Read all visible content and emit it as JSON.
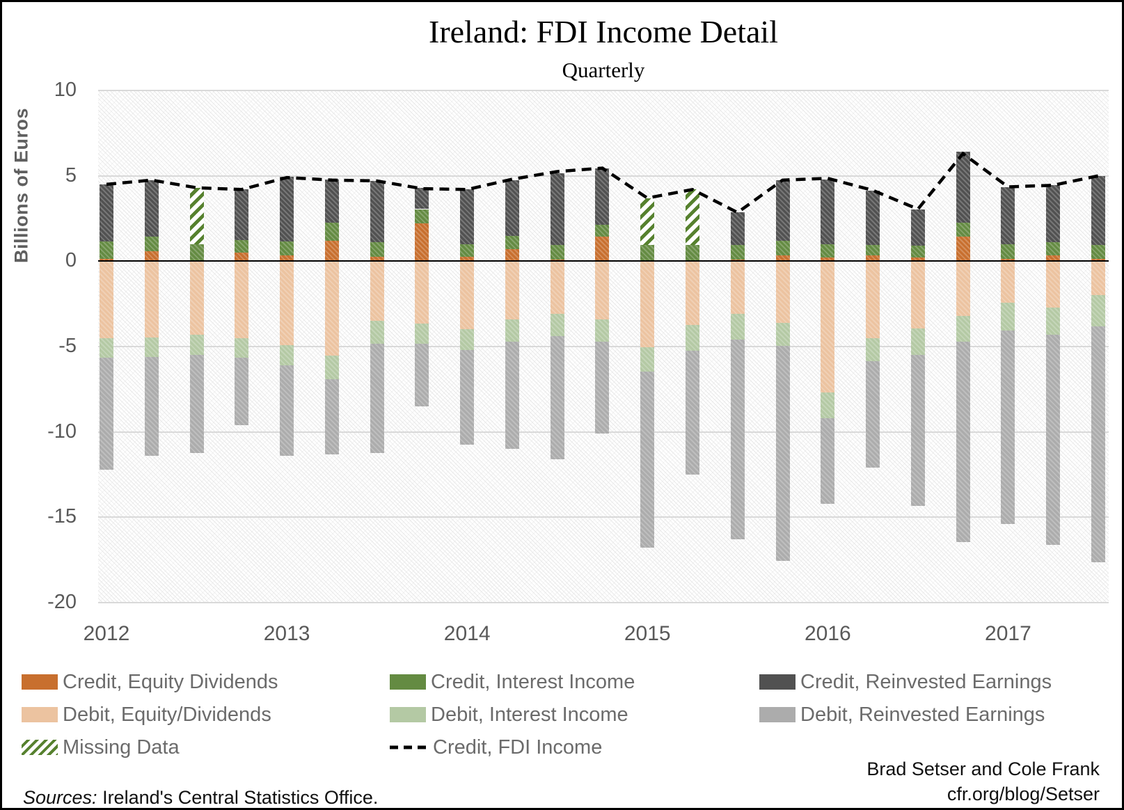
{
  "title": "Ireland: FDI Income Detail",
  "subtitle": "Quarterly",
  "y_axis_title": "Billions of Euros",
  "footer": {
    "sources_label": "Sources:",
    "sources_text": " Ireland's Central Statistics Office.",
    "attribution_line1": "Brad Setser and Cole Frank",
    "attribution_line2": "cfr.org/blog/Setser"
  },
  "colors": {
    "credit_equity": "#c86f2e",
    "credit_interest": "#648b42",
    "credit_reinvested": "#515151",
    "debit_equity": "#ecc3a0",
    "debit_interest": "#b4c9a4",
    "debit_reinvested": "#acacac",
    "missing_stripe": "#56812e",
    "missing_bg": "#ffffff",
    "line_color": "#000000",
    "gridline": "#d9d9d9",
    "axis_text": "#595959"
  },
  "legend": [
    {
      "label": "Credit, Equity Dividends",
      "swatch": "credit_equity",
      "col": 0,
      "row": 0
    },
    {
      "label": "Debit, Equity/Dividends",
      "swatch": "debit_equity",
      "col": 0,
      "row": 1
    },
    {
      "label": "Missing Data",
      "swatch": "missing",
      "col": 0,
      "row": 2
    },
    {
      "label": "Credit, Interest Income",
      "swatch": "credit_interest",
      "col": 1,
      "row": 0
    },
    {
      "label": "Debit, Interest Income",
      "swatch": "debit_interest",
      "col": 1,
      "row": 1
    },
    {
      "label": "Credit, FDI Income",
      "swatch": "dash",
      "col": 1,
      "row": 2
    },
    {
      "label": "Credit, Reinvested Earnings",
      "swatch": "credit_reinvested",
      "col": 2,
      "row": 0
    },
    {
      "label": "Debit, Reinvested Earnings",
      "swatch": "debit_reinvested",
      "col": 2,
      "row": 1
    }
  ],
  "chart_data": {
    "type": "bar",
    "subtype": "stacked-with-line-overlay",
    "title": "Ireland: FDI Income Detail",
    "subtitle": "Quarterly",
    "ylabel": "Billions of Euros",
    "ylim": [
      -20,
      10
    ],
    "yticks": [
      10,
      5,
      0,
      -5,
      -10,
      -15,
      -20
    ],
    "grid": true,
    "legend_position": "bottom",
    "line_series_name": "Credit, FDI Income",
    "year_labels": [
      {
        "label": "2012",
        "quarter_index": 0
      },
      {
        "label": "2013",
        "quarter_index": 4
      },
      {
        "label": "2014",
        "quarter_index": 8
      },
      {
        "label": "2015",
        "quarter_index": 12
      },
      {
        "label": "2016",
        "quarter_index": 16
      },
      {
        "label": "2017",
        "quarter_index": 20
      }
    ],
    "quarters": [
      {
        "label": "2012 Q1",
        "missing": false,
        "credit": {
          "equity": 0.15,
          "interest": 1.0,
          "reinvested": 3.35
        },
        "debit": {
          "equity": 4.5,
          "interest": 1.15,
          "reinvested": 6.55
        },
        "credit_total": 4.5
      },
      {
        "label": "2012 Q2",
        "missing": false,
        "credit": {
          "equity": 0.6,
          "interest": 0.85,
          "reinvested": 3.3
        },
        "debit": {
          "equity": 4.45,
          "interest": 1.15,
          "reinvested": 5.8
        },
        "credit_total": 4.75
      },
      {
        "label": "2012 Q3",
        "missing": true,
        "credit": {
          "equity": 0.0,
          "interest": 1.0,
          "reinvested": 0.0
        },
        "debit": {
          "equity": 4.3,
          "interest": 1.2,
          "reinvested": 5.75
        },
        "credit_total": 4.3
      },
      {
        "label": "2012 Q4",
        "missing": false,
        "credit": {
          "equity": 0.5,
          "interest": 0.75,
          "reinvested": 2.95
        },
        "debit": {
          "equity": 4.5,
          "interest": 1.15,
          "reinvested": 3.95
        },
        "credit_total": 4.2
      },
      {
        "label": "2013 Q1",
        "missing": false,
        "credit": {
          "equity": 0.35,
          "interest": 0.8,
          "reinvested": 3.8
        },
        "debit": {
          "equity": 4.9,
          "interest": 1.2,
          "reinvested": 5.3
        },
        "credit_total": 4.9
      },
      {
        "label": "2013 Q2",
        "missing": false,
        "credit": {
          "equity": 1.2,
          "interest": 1.05,
          "reinvested": 2.55
        },
        "debit": {
          "equity": 5.55,
          "interest": 1.35,
          "reinvested": 4.4
        },
        "credit_total": 4.75
      },
      {
        "label": "2013 Q3",
        "missing": false,
        "credit": {
          "equity": 0.25,
          "interest": 0.85,
          "reinvested": 3.6
        },
        "debit": {
          "equity": 3.5,
          "interest": 1.35,
          "reinvested": 6.4
        },
        "credit_total": 4.7
      },
      {
        "label": "2013 Q4",
        "missing": false,
        "credit": {
          "equity": 2.2,
          "interest": 0.85,
          "reinvested": 1.25
        },
        "debit": {
          "equity": 3.65,
          "interest": 1.2,
          "reinvested": 3.65
        },
        "credit_total": 4.25
      },
      {
        "label": "2014 Q1",
        "missing": false,
        "credit": {
          "equity": 0.25,
          "interest": 0.75,
          "reinvested": 3.2
        },
        "debit": {
          "equity": 4.0,
          "interest": 1.2,
          "reinvested": 5.55
        },
        "credit_total": 4.2
      },
      {
        "label": "2014 Q2",
        "missing": false,
        "credit": {
          "equity": 0.7,
          "interest": 0.8,
          "reinvested": 3.25
        },
        "debit": {
          "equity": 3.4,
          "interest": 1.3,
          "reinvested": 6.3
        },
        "credit_total": 4.8
      },
      {
        "label": "2014 Q3",
        "missing": false,
        "credit": {
          "equity": 0.1,
          "interest": 0.85,
          "reinvested": 4.2
        },
        "debit": {
          "equity": 3.1,
          "interest": 1.3,
          "reinvested": 7.2
        },
        "credit_total": 5.25
      },
      {
        "label": "2014 Q4",
        "missing": false,
        "credit": {
          "equity": 1.45,
          "interest": 0.7,
          "reinvested": 3.3
        },
        "debit": {
          "equity": 3.4,
          "interest": 1.3,
          "reinvested": 5.4
        },
        "credit_total": 5.45
      },
      {
        "label": "2015 Q1",
        "missing": true,
        "credit": {
          "equity": 0.0,
          "interest": 0.95,
          "reinvested": 0.0
        },
        "debit": {
          "equity": 5.05,
          "interest": 1.4,
          "reinvested": 10.35
        },
        "credit_total": 3.7
      },
      {
        "label": "2015 Q2",
        "missing": true,
        "credit": {
          "equity": 0.0,
          "interest": 0.95,
          "reinvested": 0.0
        },
        "debit": {
          "equity": 3.75,
          "interest": 1.5,
          "reinvested": 7.25
        },
        "credit_total": 4.2
      },
      {
        "label": "2015 Q3",
        "missing": false,
        "credit": {
          "equity": 0.1,
          "interest": 0.85,
          "reinvested": 1.9
        },
        "debit": {
          "equity": 3.1,
          "interest": 1.5,
          "reinvested": 11.7
        },
        "credit_total": 2.85
      },
      {
        "label": "2015 Q4",
        "missing": false,
        "credit": {
          "equity": 0.35,
          "interest": 0.85,
          "reinvested": 3.55
        },
        "debit": {
          "equity": 3.6,
          "interest": 1.35,
          "reinvested": 12.6
        },
        "credit_total": 4.75
      },
      {
        "label": "2016 Q1",
        "missing": false,
        "credit": {
          "equity": 0.2,
          "interest": 0.8,
          "reinvested": 3.8
        },
        "debit": {
          "equity": 7.7,
          "interest": 1.5,
          "reinvested": 5.0
        },
        "credit_total": 4.85
      },
      {
        "label": "2016 Q2",
        "missing": false,
        "credit": {
          "equity": 0.35,
          "interest": 0.6,
          "reinvested": 3.2
        },
        "debit": {
          "equity": 4.5,
          "interest": 1.35,
          "reinvested": 6.25
        },
        "credit_total": 4.15
      },
      {
        "label": "2016 Q3",
        "missing": false,
        "credit": {
          "equity": 0.2,
          "interest": 0.7,
          "reinvested": 2.15
        },
        "debit": {
          "equity": 3.95,
          "interest": 1.55,
          "reinvested": 8.85
        },
        "credit_total": 3.05
      },
      {
        "label": "2016 Q4",
        "missing": false,
        "credit": {
          "equity": 1.45,
          "interest": 0.8,
          "reinvested": 4.15
        },
        "debit": {
          "equity": 3.2,
          "interest": 1.5,
          "reinvested": 11.75
        },
        "credit_total": 6.3
      },
      {
        "label": "2017 Q1",
        "missing": false,
        "credit": {
          "equity": 0.15,
          "interest": 0.85,
          "reinvested": 3.35
        },
        "debit": {
          "equity": 2.45,
          "interest": 1.6,
          "reinvested": 11.35
        },
        "credit_total": 4.35
      },
      {
        "label": "2017 Q2",
        "missing": false,
        "credit": {
          "equity": 0.35,
          "interest": 0.75,
          "reinvested": 3.35
        },
        "debit": {
          "equity": 2.7,
          "interest": 1.6,
          "reinvested": 12.3
        },
        "credit_total": 4.45
      },
      {
        "label": "2017 Q3",
        "missing": false,
        "credit": {
          "equity": 0.15,
          "interest": 0.8,
          "reinvested": 4.05
        },
        "debit": {
          "equity": 2.0,
          "interest": 1.8,
          "reinvested": 13.85
        },
        "credit_total": 5.0
      }
    ]
  }
}
